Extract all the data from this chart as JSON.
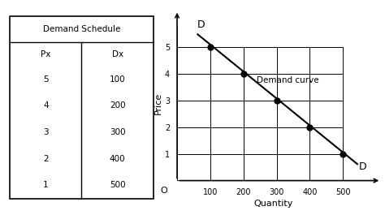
{
  "table_title": "Demand Schedule",
  "col_headers": [
    "Px",
    "Dx"
  ],
  "table_data": [
    [
      5,
      100
    ],
    [
      4,
      200
    ],
    [
      3,
      300
    ],
    [
      2,
      400
    ],
    [
      1,
      500
    ]
  ],
  "quantity": [
    100,
    200,
    300,
    400,
    500
  ],
  "price": [
    5,
    4,
    3,
    2,
    1
  ],
  "xlabel": "Quantity",
  "ylabel": "Price",
  "x_origin_label": "O",
  "x_tick_labels": [
    "100",
    "200",
    "300",
    "400",
    "500"
  ],
  "y_tick_labels": [
    "1",
    "2",
    "3",
    "4",
    "5"
  ],
  "demand_label": "Demand curve",
  "d_label_top": "D",
  "d_label_bottom": "D",
  "line_color": "#000000",
  "dot_color": "#000000",
  "background_color": "#ffffff",
  "grid_color": "#000000",
  "xlim": [
    0,
    580
  ],
  "ylim": [
    0,
    5.8
  ],
  "x_ticks": [
    100,
    200,
    300,
    400,
    500
  ],
  "y_ticks": [
    1,
    2,
    3,
    4,
    5
  ],
  "line_x_start": 60,
  "line_x_end": 545,
  "line_y_start": 5.5,
  "line_y_end": 0.6,
  "d_top_x": 60,
  "d_top_y": 5.65,
  "d_bot_x": 548,
  "d_bot_y": 0.52
}
